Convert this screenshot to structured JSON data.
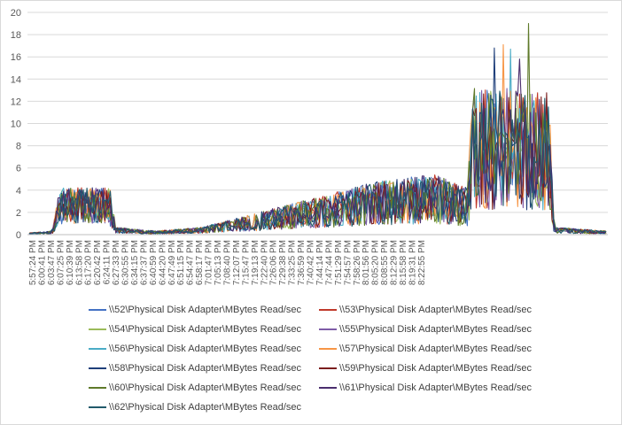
{
  "chart_data": {
    "type": "line",
    "title": "",
    "xlabel": "",
    "ylabel": "",
    "ylim": [
      0,
      20
    ],
    "y_ticks": [
      0,
      2,
      4,
      6,
      8,
      10,
      12,
      14,
      16,
      18,
      20
    ],
    "grid": true,
    "legend_position": "bottom",
    "x_tick_labels": [
      "5:57:24 PM",
      "6:00:41 PM",
      "6:03:47 PM",
      "6:07:25 PM",
      "6:10:39 PM",
      "6:13:58 PM",
      "6:17:20 PM",
      "6:20:42 PM",
      "6:24:11 PM",
      "6:27:33 PM",
      "6:30:55 PM",
      "6:34:15 PM",
      "6:37:37 PM",
      "6:40:59 PM",
      "6:44:20 PM",
      "6:47:49 PM",
      "6:51:15 PM",
      "6:54:47 PM",
      "6:58:17 PM",
      "7:01:47 PM",
      "7:05:13 PM",
      "7:08:40 PM",
      "7:12:07 PM",
      "7:15:47 PM",
      "7:19:13 PM",
      "7:22:40 PM",
      "7:26:06 PM",
      "7:29:38 PM",
      "7:33:25 PM",
      "7:36:59 PM",
      "7:40:42 PM",
      "7:44:14 PM",
      "7:47:44 PM",
      "7:51:29 PM",
      "7:54:57 PM",
      "7:58:26 PM",
      "8:01:56 PM",
      "8:05:20 PM",
      "8:08:55 PM",
      "8:12:29 PM",
      "8:15:58 PM",
      "8:19:31 PM",
      "8:22:55 PM"
    ],
    "series": [
      {
        "name": "\\\\52\\Physical Disk Adapter\\MBytes Read/sec",
        "color": "#4472c4",
        "seed": 52
      },
      {
        "name": "\\\\53\\Physical Disk Adapter\\MBytes Read/sec",
        "color": "#c0392b",
        "seed": 53
      },
      {
        "name": "\\\\54\\Physical Disk Adapter\\MBytes Read/sec",
        "color": "#9bbb59",
        "seed": 54
      },
      {
        "name": "\\\\55\\Physical Disk Adapter\\MBytes Read/sec",
        "color": "#7e5ca7",
        "seed": 55
      },
      {
        "name": "\\\\56\\Physical Disk Adapter\\MBytes Read/sec",
        "color": "#4bacc6",
        "seed": 56
      },
      {
        "name": "\\\\57\\Physical Disk Adapter\\MBytes Read/sec",
        "color": "#f79646",
        "seed": 57
      },
      {
        "name": "\\\\58\\Physical Disk Adapter\\MBytes Read/sec",
        "color": "#1f3f7a",
        "seed": 58
      },
      {
        "name": "\\\\59\\Physical Disk Adapter\\MBytes Read/sec",
        "color": "#7b1e1e",
        "seed": 59
      },
      {
        "name": "\\\\60\\Physical Disk Adapter\\MBytes Read/sec",
        "color": "#5f7a2a",
        "seed": 60
      },
      {
        "name": "\\\\61\\Physical Disk Adapter\\MBytes Read/sec",
        "color": "#4b2e6e",
        "seed": 61
      },
      {
        "name": "\\\\62\\Physical Disk Adapter\\MBytes Read/sec",
        "color": "#215a6b",
        "seed": 62
      }
    ],
    "profile": [
      [
        0,
        0.1
      ],
      [
        4,
        0.2
      ],
      [
        5,
        2.0
      ],
      [
        6,
        2.5
      ],
      [
        14,
        2.5
      ],
      [
        15,
        0.4
      ],
      [
        22,
        0.2
      ],
      [
        30,
        0.4
      ],
      [
        40,
        1.2
      ],
      [
        50,
        2.0
      ],
      [
        60,
        2.8
      ],
      [
        70,
        3.2
      ],
      [
        76,
        2.5
      ],
      [
        77,
        9.0
      ],
      [
        90,
        8.5
      ],
      [
        91,
        0.4
      ],
      [
        100,
        0.2
      ]
    ],
    "peaks": [
      {
        "seriesIndex": 8,
        "value": 19.0
      },
      {
        "seriesIndex": 6,
        "value": 16.8
      },
      {
        "seriesIndex": 5,
        "value": 17.1
      },
      {
        "seriesIndex": 4,
        "value": 16.7
      },
      {
        "seriesIndex": 9,
        "value": 15.8
      }
    ]
  }
}
